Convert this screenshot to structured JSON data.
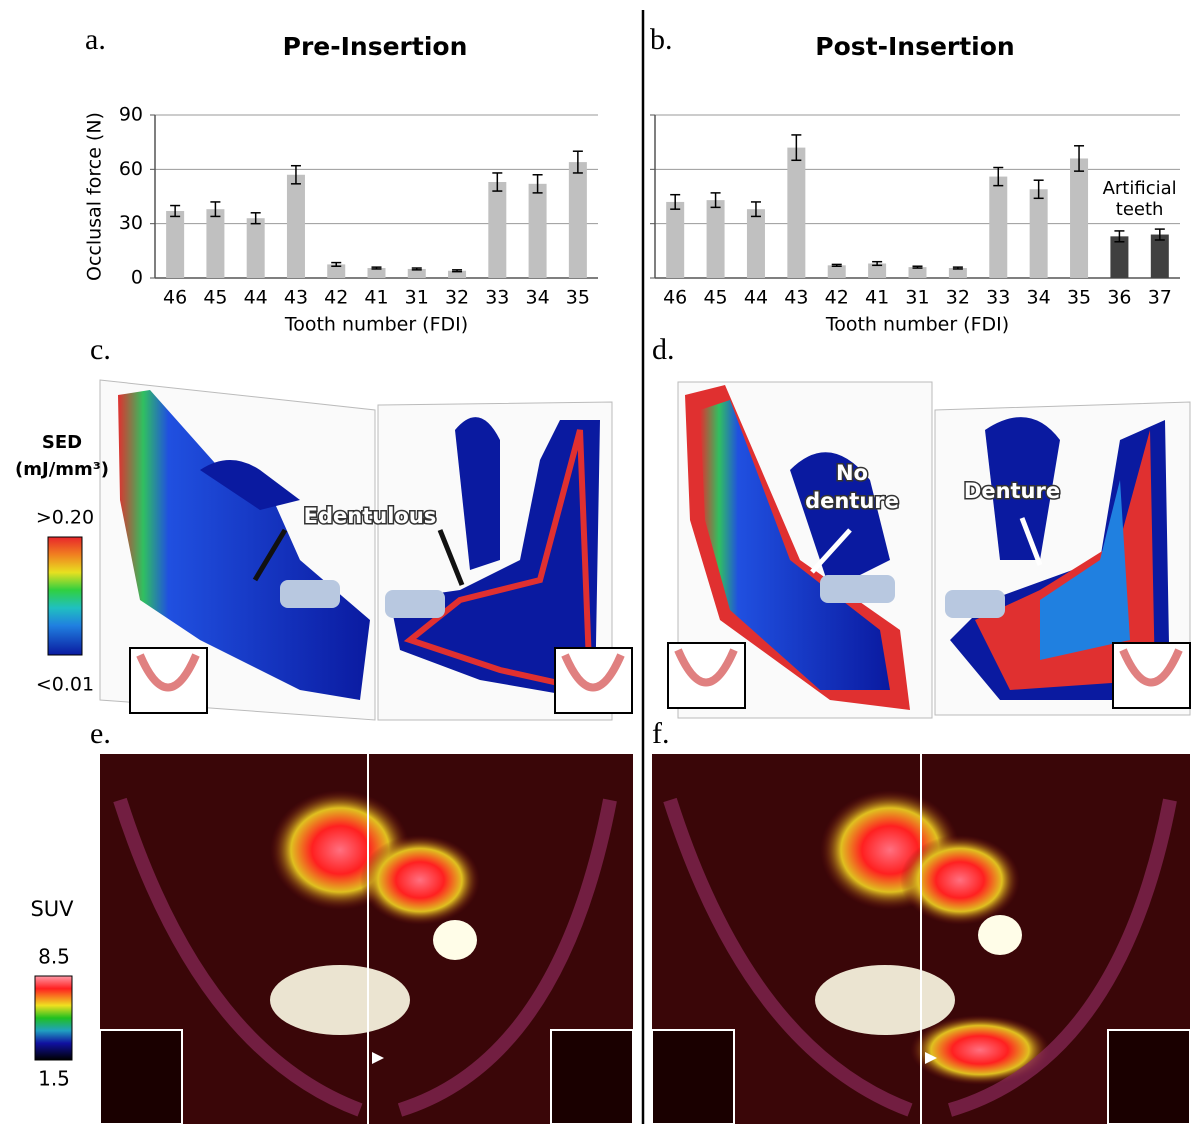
{
  "chart_data": [
    {
      "type": "bar",
      "panel_label": "a.",
      "title": "Pre-Insertion",
      "y_label": "Occlusal force (N)",
      "x_label": "Tooth number (FDI)",
      "categories": [
        "46",
        "45",
        "44",
        "43",
        "42",
        "41",
        "31",
        "32",
        "33",
        "34",
        "35"
      ],
      "values": [
        37,
        38,
        33,
        57,
        7.5,
        5.5,
        5,
        4,
        53,
        52,
        64
      ],
      "errors": [
        3,
        4,
        3,
        5,
        1,
        0.5,
        0.5,
        0.5,
        5,
        5,
        6
      ],
      "color": "#c0c0c0",
      "ylim": [
        0,
        90
      ],
      "yticks": [
        0,
        30,
        60,
        90
      ],
      "grid": true,
      "ytick_labels": true
    },
    {
      "type": "bar",
      "panel_label": "b.",
      "title": "Post-Insertion",
      "x_label": "Tooth number (FDI)",
      "categories": [
        "46",
        "45",
        "44",
        "43",
        "42",
        "41",
        "31",
        "32",
        "33",
        "34",
        "35",
        "36",
        "37"
      ],
      "values": [
        42,
        43,
        38,
        72,
        7,
        8,
        6,
        5.5,
        56,
        49,
        66,
        23,
        24
      ],
      "errors": [
        4,
        4,
        4,
        7,
        0.5,
        1,
        0.5,
        0.5,
        5,
        5,
        7,
        3,
        3
      ],
      "colors": [
        "#c0c0c0",
        "#c0c0c0",
        "#c0c0c0",
        "#c0c0c0",
        "#c0c0c0",
        "#c0c0c0",
        "#c0c0c0",
        "#c0c0c0",
        "#c0c0c0",
        "#c0c0c0",
        "#c0c0c0",
        "#404040",
        "#404040"
      ],
      "annotation": [
        "Artificial",
        "teeth"
      ],
      "ylim": [
        0,
        90
      ],
      "yticks": [
        0,
        30,
        60,
        90
      ],
      "grid": true,
      "ytick_labels": false
    }
  ],
  "panels": {
    "c": "c.",
    "d": "d.",
    "e": "e.",
    "f": "f."
  },
  "sed_legend": {
    "title": [
      "SED",
      "(mJ/mm³)"
    ],
    "max": ">0.20",
    "min": "<0.01"
  },
  "annotations": {
    "edentulous": "Edentulous",
    "no_denture": [
      "No",
      "denture"
    ],
    "denture": "Denture"
  },
  "suv_legend": {
    "title": "SUV",
    "max": "8.5",
    "min": "1.5"
  }
}
